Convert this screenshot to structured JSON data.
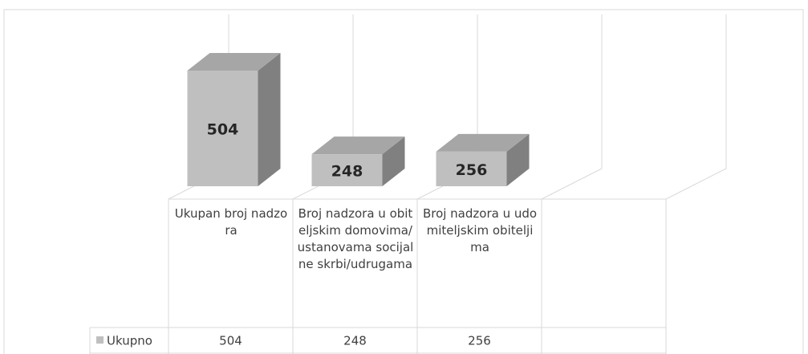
{
  "chart_data": {
    "type": "bar3d",
    "categories": [
      "Ukupan broj nadzora",
      "Broj nadzora u obiteljskim domovima/ustanovama socijalne skrbi/udrugama",
      "Broj nadzora u udomiteljskim obiteljima",
      null
    ],
    "series": [
      {
        "name": "Ukupno",
        "color": "#bfbfbf",
        "side_color": "#808080",
        "top_color": "#a6a6a6",
        "values": [
          504,
          248,
          256,
          null
        ]
      }
    ],
    "ylim": [
      150,
      600
    ],
    "data_table": true
  }
}
